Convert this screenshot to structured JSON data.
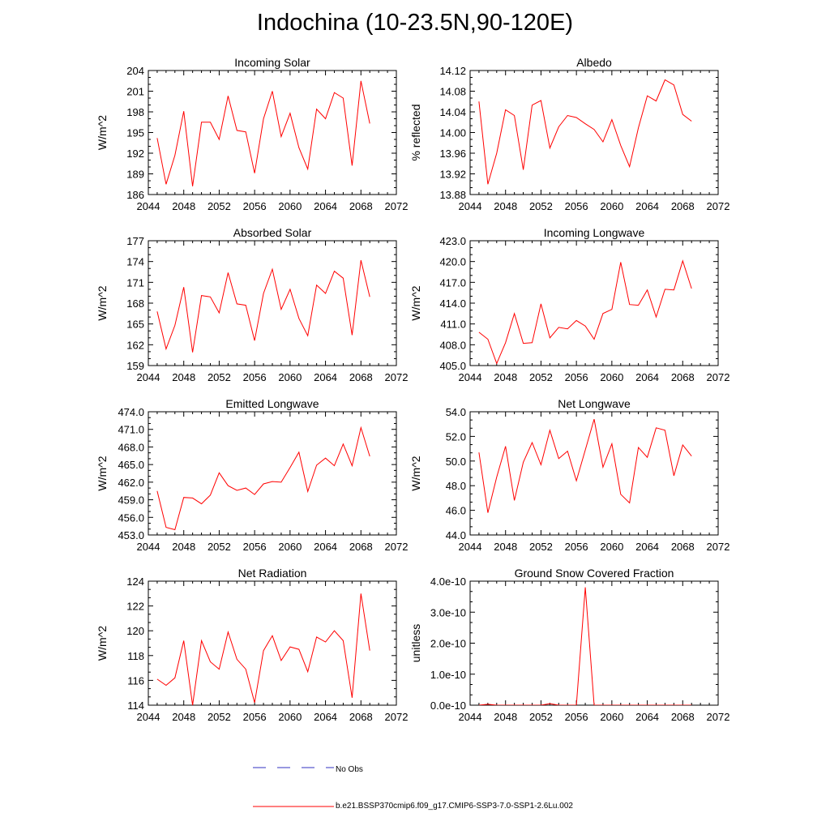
{
  "page": {
    "title": "Indochina (10-23.5N,90-120E)"
  },
  "colors": {
    "model": "#ff0000",
    "obs": "#3030c0",
    "axis": "#000000"
  },
  "legend": {
    "obs_label": "No Obs",
    "model_label": "b.e21.BSSP370cmip6.f09_g17.CMIP6-SSP3-7.0-SSP1-2.6Lu.002"
  },
  "chart_data": [
    {
      "type": "line",
      "title": "Incoming Solar",
      "ylabel": "W/m^2",
      "xlim": [
        2044,
        2072
      ],
      "ylim": [
        186,
        204
      ],
      "xticks": [
        "2044",
        "2048",
        "2052",
        "2056",
        "2060",
        "2064",
        "2068",
        "2072"
      ],
      "yticks": [
        "186",
        "189",
        "192",
        "195",
        "198",
        "201",
        "204"
      ],
      "x": [
        2045,
        2046,
        2047,
        2048,
        2049,
        2050,
        2051,
        2052,
        2053,
        2054,
        2055,
        2056,
        2057,
        2058,
        2059,
        2060,
        2061,
        2062,
        2063,
        2064,
        2065,
        2066,
        2067,
        2068,
        2069
      ],
      "series": [
        {
          "name": "b.e21.BSSP370cmip6.f09_g17.CMIP6-SSP3-7.0-SSP1-2.6Lu.002",
          "values": [
            194.2,
            187.5,
            191.7,
            198.1,
            187.2,
            196.5,
            196.5,
            194.0,
            200.3,
            195.3,
            195.1,
            189.1,
            197.0,
            201.0,
            194.4,
            197.8,
            192.8,
            189.7,
            198.4,
            197.0,
            200.8,
            200.0,
            190.2,
            202.5,
            196.3
          ]
        }
      ]
    },
    {
      "type": "line",
      "title": "Albedo",
      "ylabel": "% reflected",
      "xlim": [
        2044,
        2072
      ],
      "ylim": [
        13.88,
        14.12
      ],
      "xticks": [
        "2044",
        "2048",
        "2052",
        "2056",
        "2060",
        "2064",
        "2068",
        "2072"
      ],
      "yticks": [
        "13.88",
        "13.92",
        "13.96",
        "14.00",
        "14.04",
        "14.08",
        "14.12"
      ],
      "x": [
        2045,
        2046,
        2047,
        2048,
        2049,
        2050,
        2051,
        2052,
        2053,
        2054,
        2055,
        2056,
        2057,
        2058,
        2059,
        2060,
        2061,
        2062,
        2063,
        2064,
        2065,
        2066,
        2067,
        2068,
        2069
      ],
      "series": [
        {
          "name": "b.e21.BSSP370cmip6.f09_g17.CMIP6-SSP3-7.0-SSP1-2.6Lu.002",
          "values": [
            14.06,
            13.9,
            13.96,
            14.044,
            14.033,
            13.928,
            14.053,
            14.062,
            13.97,
            14.011,
            14.033,
            14.029,
            14.017,
            14.006,
            13.982,
            14.025,
            13.975,
            13.934,
            14.009,
            14.071,
            14.061,
            14.102,
            14.092,
            14.035,
            14.022
          ]
        }
      ]
    },
    {
      "type": "line",
      "title": "Absorbed Solar",
      "ylabel": "W/m^2",
      "xlim": [
        2044,
        2072
      ],
      "ylim": [
        159,
        177
      ],
      "xticks": [
        "2044",
        "2048",
        "2052",
        "2056",
        "2060",
        "2064",
        "2068",
        "2072"
      ],
      "yticks": [
        "159",
        "162",
        "165",
        "168",
        "171",
        "174",
        "177"
      ],
      "x": [
        2045,
        2046,
        2047,
        2048,
        2049,
        2050,
        2051,
        2052,
        2053,
        2054,
        2055,
        2056,
        2057,
        2058,
        2059,
        2060,
        2061,
        2062,
        2063,
        2064,
        2065,
        2066,
        2067,
        2068,
        2069
      ],
      "series": [
        {
          "name": "b.e21.BSSP370cmip6.f09_g17.CMIP6-SSP3-7.0-SSP1-2.6Lu.002",
          "values": [
            166.8,
            161.4,
            164.8,
            170.3,
            160.9,
            169.1,
            168.9,
            166.6,
            172.4,
            167.9,
            167.7,
            162.6,
            169.4,
            172.9,
            167.1,
            170.0,
            165.8,
            163.3,
            170.6,
            169.4,
            172.6,
            171.6,
            163.4,
            174.2,
            168.9
          ]
        }
      ]
    },
    {
      "type": "line",
      "title": "Incoming Longwave",
      "ylabel": "W/m^2",
      "xlim": [
        2044,
        2072
      ],
      "ylim": [
        405,
        423
      ],
      "xticks": [
        "2044",
        "2048",
        "2052",
        "2056",
        "2060",
        "2064",
        "2068",
        "2072"
      ],
      "yticks": [
        "405.0",
        "408.0",
        "411.0",
        "414.0",
        "417.0",
        "420.0",
        "423.0"
      ],
      "x": [
        2045,
        2046,
        2047,
        2048,
        2049,
        2050,
        2051,
        2052,
        2053,
        2054,
        2055,
        2056,
        2057,
        2058,
        2059,
        2060,
        2061,
        2062,
        2063,
        2064,
        2065,
        2066,
        2067,
        2068,
        2069
      ],
      "series": [
        {
          "name": "b.e21.BSSP370cmip6.f09_g17.CMIP6-SSP3-7.0-SSP1-2.6Lu.002",
          "values": [
            409.8,
            408.8,
            405.3,
            408.3,
            412.5,
            408.2,
            408.3,
            413.9,
            409.0,
            410.5,
            410.3,
            411.5,
            410.7,
            408.8,
            412.5,
            413.1,
            419.9,
            413.8,
            413.7,
            415.9,
            412.0,
            416.0,
            415.9,
            420.1,
            416.1
          ]
        }
      ]
    },
    {
      "type": "line",
      "title": "Emitted Longwave",
      "ylabel": "W/m^2",
      "xlim": [
        2044,
        2072
      ],
      "ylim": [
        453,
        474
      ],
      "xticks": [
        "2044",
        "2048",
        "2052",
        "2056",
        "2060",
        "2064",
        "2068",
        "2072"
      ],
      "yticks": [
        "453.0",
        "456.0",
        "459.0",
        "462.0",
        "465.0",
        "468.0",
        "471.0",
        "474.0"
      ],
      "x": [
        2045,
        2046,
        2047,
        2048,
        2049,
        2050,
        2051,
        2052,
        2053,
        2054,
        2055,
        2056,
        2057,
        2058,
        2059,
        2060,
        2061,
        2062,
        2063,
        2064,
        2065,
        2066,
        2067,
        2068,
        2069
      ],
      "series": [
        {
          "name": "b.e21.BSSP370cmip6.f09_g17.CMIP6-SSP3-7.0-SSP1-2.6Lu.002",
          "values": [
            460.5,
            454.3,
            453.9,
            459.4,
            459.3,
            458.3,
            459.8,
            463.6,
            461.4,
            460.6,
            461.0,
            459.9,
            461.7,
            462.1,
            462.0,
            464.5,
            467.1,
            460.4,
            464.9,
            466.1,
            464.8,
            468.5,
            464.8,
            471.3,
            466.4
          ]
        }
      ]
    },
    {
      "type": "line",
      "title": "Net Longwave",
      "ylabel": "W/m^2",
      "xlim": [
        2044,
        2072
      ],
      "ylim": [
        44,
        54
      ],
      "xticks": [
        "2044",
        "2048",
        "2052",
        "2056",
        "2060",
        "2064",
        "2068",
        "2072"
      ],
      "yticks": [
        "44.0",
        "46.0",
        "48.0",
        "50.0",
        "52.0",
        "54.0"
      ],
      "x": [
        2045,
        2046,
        2047,
        2048,
        2049,
        2050,
        2051,
        2052,
        2053,
        2054,
        2055,
        2056,
        2057,
        2058,
        2059,
        2060,
        2061,
        2062,
        2063,
        2064,
        2065,
        2066,
        2067,
        2068,
        2069
      ],
      "series": [
        {
          "name": "b.e21.BSSP370cmip6.f09_g17.CMIP6-SSP3-7.0-SSP1-2.6Lu.002",
          "values": [
            50.7,
            45.8,
            48.7,
            51.2,
            46.8,
            49.9,
            51.5,
            49.7,
            52.5,
            50.2,
            50.8,
            48.4,
            50.9,
            53.4,
            49.5,
            51.4,
            47.3,
            46.6,
            51.1,
            50.3,
            52.7,
            52.5,
            48.8,
            51.3,
            50.4
          ]
        }
      ]
    },
    {
      "type": "line",
      "title": "Net Radiation",
      "ylabel": "W/m^2",
      "xlim": [
        2044,
        2072
      ],
      "ylim": [
        114,
        124
      ],
      "xticks": [
        "2044",
        "2048",
        "2052",
        "2056",
        "2060",
        "2064",
        "2068",
        "2072"
      ],
      "yticks": [
        "114",
        "116",
        "118",
        "120",
        "122",
        "124"
      ],
      "x": [
        2045,
        2046,
        2047,
        2048,
        2049,
        2050,
        2051,
        2052,
        2053,
        2054,
        2055,
        2056,
        2057,
        2058,
        2059,
        2060,
        2061,
        2062,
        2063,
        2064,
        2065,
        2066,
        2067,
        2068,
        2069
      ],
      "series": [
        {
          "name": "b.e21.BSSP370cmip6.f09_g17.CMIP6-SSP3-7.0-SSP1-2.6Lu.002",
          "values": [
            116.1,
            115.6,
            116.2,
            119.2,
            114.0,
            119.2,
            117.5,
            116.9,
            119.9,
            117.7,
            116.9,
            114.2,
            118.4,
            119.6,
            117.6,
            118.7,
            118.5,
            116.7,
            119.5,
            119.1,
            120.0,
            119.2,
            114.6,
            123.0,
            118.4
          ]
        }
      ]
    },
    {
      "type": "line",
      "title": "Ground Snow Covered Fraction",
      "ylabel": "unitless",
      "xlim": [
        2044,
        2072
      ],
      "ylim": [
        0,
        4e-10
      ],
      "xticks": [
        "2044",
        "2048",
        "2052",
        "2056",
        "2060",
        "2064",
        "2068",
        "2072"
      ],
      "yticks": [
        "0.0e-10",
        "1.0e-10",
        "2.0e-10",
        "3.0e-10",
        "4.0e-10"
      ],
      "x": [
        2045,
        2046,
        2047,
        2048,
        2049,
        2050,
        2051,
        2052,
        2053,
        2054,
        2055,
        2056,
        2057,
        2058,
        2059,
        2060,
        2061,
        2062,
        2063,
        2064,
        2065,
        2066,
        2067,
        2068,
        2069
      ],
      "series": [
        {
          "name": "b.e21.BSSP370cmip6.f09_g17.CMIP6-SSP3-7.0-SSP1-2.6Lu.002",
          "values": [
            0,
            3e-12,
            0,
            0,
            0,
            0,
            0,
            0,
            5e-12,
            0,
            0,
            0,
            3.8e-10,
            0,
            0,
            0,
            0,
            0,
            0,
            0,
            0,
            0,
            0,
            0,
            0
          ]
        }
      ]
    }
  ]
}
